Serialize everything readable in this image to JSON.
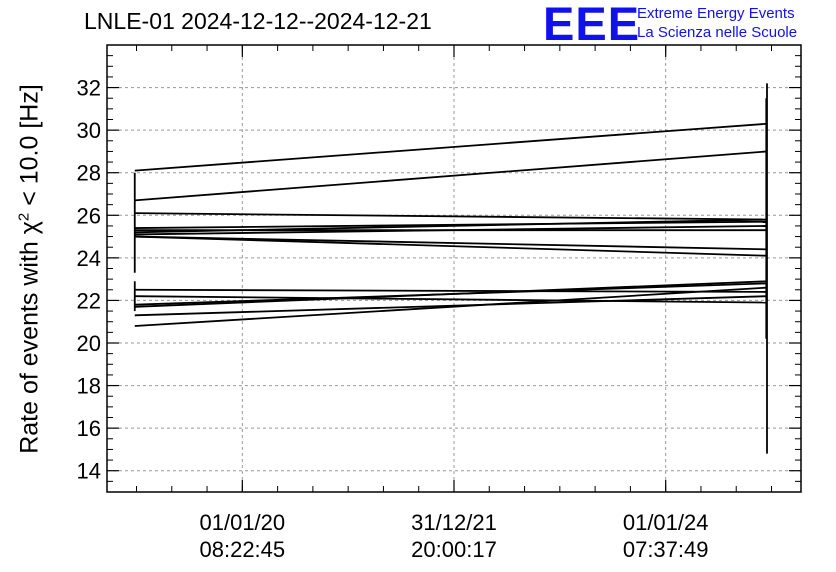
{
  "header": {
    "title": "LNLE-01 2024-12-12--2024-12-21",
    "logo": "EEE",
    "brand_line1": "Extreme Energy Events",
    "brand_line2": "La Scienza nelle Scuole"
  },
  "colors": {
    "line": "#000000",
    "grid": "#999999",
    "brand": "#1111ee"
  },
  "chart_data": {
    "type": "line",
    "title": "LNLE-01 2024-12-12--2024-12-21",
    "xlabel": "",
    "ylabel_parts": {
      "pre": "Rate of events with ",
      "chi": "χ",
      "sup": "2",
      "post": " < 10.0 [Hz]"
    },
    "ylim": [
      13,
      34
    ],
    "yticks": [
      14,
      16,
      18,
      20,
      22,
      24,
      26,
      28,
      30,
      32
    ],
    "xlim": [
      0,
      1
    ],
    "x_ticks": [
      {
        "x": 0.195,
        "label1": "01/01/20",
        "label2": "08:22:45"
      },
      {
        "x": 0.5,
        "label1": "31/12/21",
        "label2": "20:00:17"
      },
      {
        "x": 0.805,
        "label1": "01/01/24",
        "label2": "07:37:49"
      }
    ],
    "grid": true,
    "series_x": [
      0.04,
      0.951
    ],
    "series": [
      {
        "values": [
          28.1,
          30.3
        ]
      },
      {
        "values": [
          26.7,
          29.0
        ]
      },
      {
        "values": [
          26.1,
          25.8
        ]
      },
      {
        "values": [
          25.4,
          25.7
        ]
      },
      {
        "values": [
          25.3,
          25.3
        ]
      },
      {
        "values": [
          25.2,
          25.8
        ]
      },
      {
        "values": [
          25.1,
          25.5
        ]
      },
      {
        "values": [
          25.0,
          24.1
        ]
      },
      {
        "values": [
          25.0,
          24.4
        ]
      },
      {
        "values": [
          22.5,
          22.4
        ]
      },
      {
        "values": [
          22.2,
          21.9
        ]
      },
      {
        "values": [
          21.8,
          22.8
        ]
      },
      {
        "values": [
          21.7,
          22.9
        ]
      },
      {
        "values": [
          21.3,
          22.2
        ]
      },
      {
        "values": [
          20.8,
          22.6
        ]
      }
    ],
    "error_bars": [
      {
        "x": 0.04,
        "low": 23.3,
        "high": 28.0
      },
      {
        "x": 0.04,
        "low": 21.5,
        "high": 22.9
      },
      {
        "x": 0.951,
        "low": 14.8,
        "high": 32.2
      }
    ]
  }
}
